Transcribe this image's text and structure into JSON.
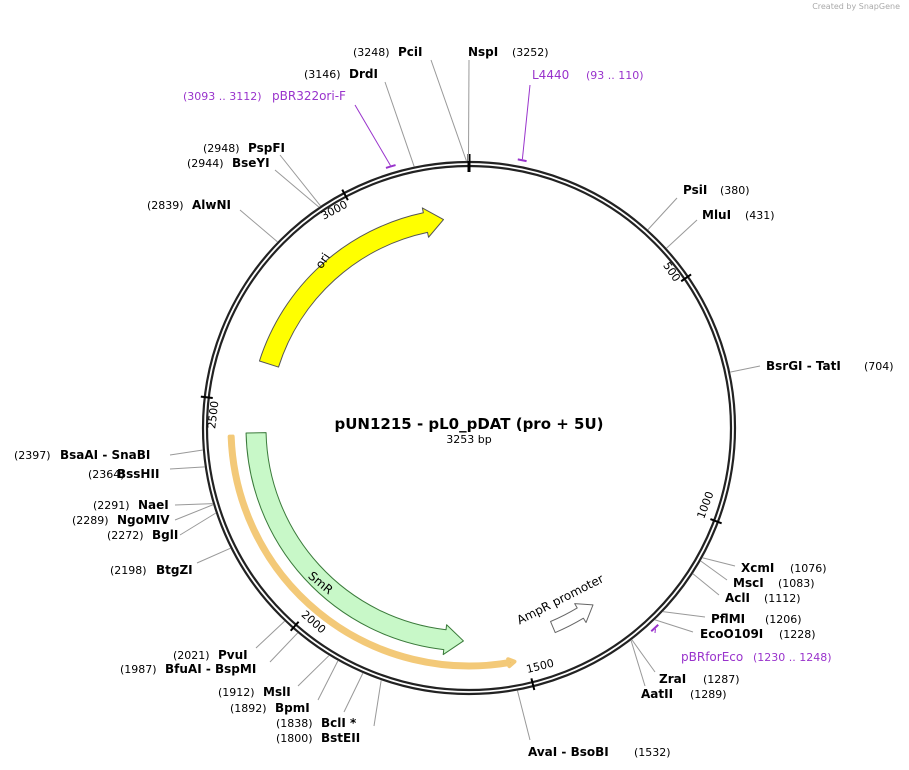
{
  "header": {
    "credit": "Created by SnapGene"
  },
  "map": {
    "title": "pUN1215 - pL0_pDAT (pro + 5U)",
    "size_label": "3253 bp",
    "length": 3253,
    "ticks": [
      500,
      1000,
      1500,
      2000,
      2500,
      3000
    ]
  },
  "sites": [
    {
      "name": "PsiI",
      "position": 380,
      "position_label": "(380)"
    },
    {
      "name": "MluI",
      "position": 431,
      "position_label": "(431)"
    },
    {
      "name": "BsrGI - TatI",
      "position": 704,
      "position_label": "(704)"
    },
    {
      "name": "XcmI",
      "position": 1076,
      "position_label": "(1076)"
    },
    {
      "name": "MscI",
      "position": 1083,
      "position_label": "(1083)"
    },
    {
      "name": "AclI",
      "position": 1112,
      "position_label": "(1112)"
    },
    {
      "name": "PflMI",
      "position": 1206,
      "position_label": "(1206)"
    },
    {
      "name": "EcoO109I",
      "position": 1228,
      "position_label": "(1228)"
    },
    {
      "name": "ZraI",
      "position": 1287,
      "position_label": "(1287)"
    },
    {
      "name": "AatII",
      "position": 1289,
      "position_label": "(1289)"
    },
    {
      "name": "AvaI - BsoBI",
      "position": 1532,
      "position_label": "(1532)"
    },
    {
      "name": "PciI",
      "position": 3248,
      "position_label": "(3248)"
    },
    {
      "name": "NspI",
      "position": 3252,
      "position_label": "(3252)"
    },
    {
      "name": "DrdI",
      "position": 3146,
      "position_label": "(3146)"
    },
    {
      "name": "PspFI",
      "position": 2948,
      "position_label": "(2948)"
    },
    {
      "name": "BseYI",
      "position": 2944,
      "position_label": "(2944)"
    },
    {
      "name": "AlwNI",
      "position": 2839,
      "position_label": "(2839)"
    },
    {
      "name": "BsaAI - SnaBI",
      "position": 2397,
      "position_label": "(2397)"
    },
    {
      "name": "BssHII",
      "position": 2364,
      "position_label": "(2364)"
    },
    {
      "name": "NaeI",
      "position": 2291,
      "position_label": "(2291)"
    },
    {
      "name": "NgoMIV",
      "position": 2289,
      "position_label": "(2289)"
    },
    {
      "name": "BglI",
      "position": 2272,
      "position_label": "(2272)"
    },
    {
      "name": "BtgZI",
      "position": 2198,
      "position_label": "(2198)"
    },
    {
      "name": "PvuI",
      "position": 2021,
      "position_label": "(2021)"
    },
    {
      "name": "BfuAI - BspMI",
      "position": 1987,
      "position_label": "(1987)"
    },
    {
      "name": "MslI",
      "position": 1912,
      "position_label": "(1912)"
    },
    {
      "name": "BpmI",
      "position": 1892,
      "position_label": "(1892)"
    },
    {
      "name": "BclI *",
      "position": 1838,
      "position_label": "(1838)"
    },
    {
      "name": "BstEII",
      "position": 1800,
      "position_label": "(1800)"
    }
  ],
  "primers": [
    {
      "name": "L4440",
      "range_label": "(93 .. 110)",
      "start": 93,
      "end": 110
    },
    {
      "name": "pBR322ori-F",
      "range_label": "(3093 .. 3112)",
      "start": 3093,
      "end": 3112
    },
    {
      "name": "pBRforEco",
      "range_label": "(1230 .. 1248)",
      "start": 1230,
      "end": 1248
    }
  ],
  "features": [
    {
      "name": "ori",
      "start": 2600,
      "end": 3190,
      "direction": "forward",
      "color": "#ffff00"
    },
    {
      "name": "SmR",
      "start": 1640,
      "end": 2428,
      "direction": "reverse",
      "color": "#c8f8c8"
    },
    {
      "name": "AmpR promoter",
      "start": 1310,
      "end": 1420,
      "direction": "reverse",
      "color": "#ffffff"
    },
    {
      "start": 1527,
      "end": 2421,
      "direction": "reverse",
      "color": "#c8860a"
    }
  ]
}
